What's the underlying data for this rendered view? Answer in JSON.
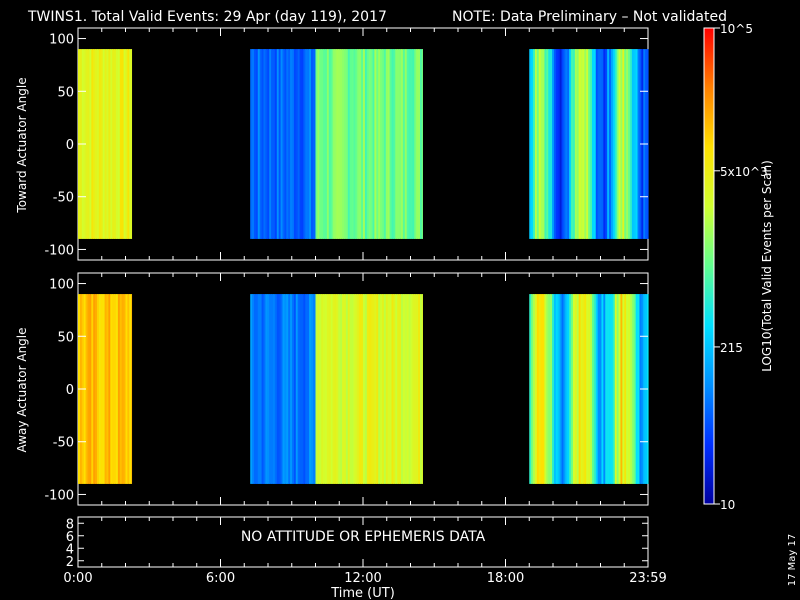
{
  "title": {
    "main": "TWINS1. Total Valid Events: 29 Apr (day 119), 2017",
    "note": "NOTE: Data Preliminary – Not validated",
    "note_color": "#ff2020"
  },
  "stamp": "17 May 17",
  "chart_data": [
    {
      "type": "heatmap",
      "name": "toward-panel",
      "ylabel": "Toward Actuator Angle",
      "yticks": [
        "100",
        "50",
        "0",
        "-50",
        "-100"
      ],
      "ylim": [
        -110,
        110
      ],
      "xlim": [
        0,
        24
      ],
      "angle_range": [
        -90,
        90
      ],
      "data_segments": [
        {
          "start": 0.0,
          "end": 2.25,
          "level": 0.68,
          "profile": "uniform"
        },
        {
          "start": 7.25,
          "end": 10.0,
          "level": 0.2,
          "profile": "uniform"
        },
        {
          "start": 10.0,
          "end": 14.5,
          "level": 0.52,
          "profile": "uniform"
        },
        {
          "start": 19.0,
          "end": 24.0,
          "level": 0.38,
          "profile": "mixed"
        }
      ]
    },
    {
      "type": "heatmap",
      "name": "away-panel",
      "ylabel": "Away Actuator Angle",
      "yticks": [
        "100",
        "50",
        "0",
        "-50",
        "-100"
      ],
      "ylim": [
        -110,
        110
      ],
      "xlim": [
        0,
        24
      ],
      "angle_range": [
        -90,
        90
      ],
      "data_segments": [
        {
          "start": 0.0,
          "end": 2.25,
          "level": 0.78,
          "profile": "uniform"
        },
        {
          "start": 7.25,
          "end": 10.0,
          "level": 0.22,
          "profile": "uniform"
        },
        {
          "start": 10.0,
          "end": 14.5,
          "level": 0.66,
          "profile": "uniform"
        },
        {
          "start": 19.0,
          "end": 24.0,
          "level": 0.5,
          "profile": "mixed"
        }
      ]
    },
    {
      "type": "line",
      "name": "attitude-panel",
      "yticks": [
        "8",
        "6",
        "4",
        "2"
      ],
      "message": "NO ATTITUDE OR EPHEMERIS DATA"
    }
  ],
  "xaxis": {
    "label": "Time (UT)",
    "ticks": [
      {
        "t": 0,
        "label": "0:00"
      },
      {
        "t": 6,
        "label": "6:00"
      },
      {
        "t": 12,
        "label": "12:00"
      },
      {
        "t": 18,
        "label": "18:00"
      },
      {
        "t": 24,
        "label": "23:59"
      }
    ]
  },
  "colorbar": {
    "label": "LOG10(Total Valid Events per Scan)",
    "ticks": [
      {
        "label": "10^5",
        "frac": 1.0
      },
      {
        "label": "5x10^3",
        "frac": 0.7
      },
      {
        "label": "215",
        "frac": 0.33
      },
      {
        "label": "10",
        "frac": 0.0
      }
    ],
    "colors": [
      "#0000a0",
      "#0030ff",
      "#0090ff",
      "#00e0ff",
      "#60ff90",
      "#d0ff30",
      "#ffe000",
      "#ff8000",
      "#ff0000"
    ]
  }
}
